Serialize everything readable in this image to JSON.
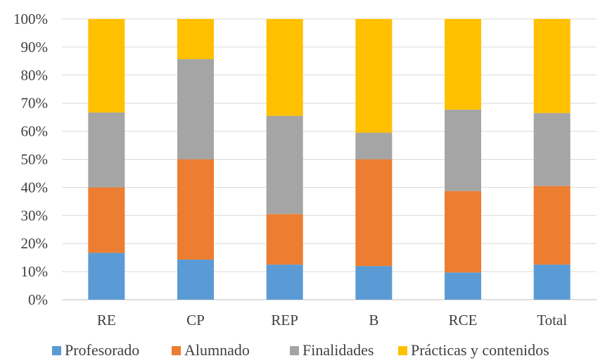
{
  "chart_data": {
    "type": "bar",
    "stacked": true,
    "normalized": true,
    "title": "",
    "xlabel": "",
    "ylabel": "",
    "ylim": [
      0,
      100
    ],
    "grid": true,
    "legend_position": "bottom",
    "y_ticks": [
      "0%",
      "10%",
      "20%",
      "30%",
      "40%",
      "50%",
      "60%",
      "70%",
      "80%",
      "90%",
      "100%"
    ],
    "categories": [
      "RE",
      "CP",
      "REP",
      "B",
      "RCE",
      "Total"
    ],
    "series": [
      {
        "name": "Profesorado",
        "color": "#5B9BD5",
        "values": [
          16.7,
          14.3,
          12.5,
          12.0,
          9.7,
          12.5
        ]
      },
      {
        "name": "Alumnado",
        "color": "#ED7D31",
        "values": [
          23.3,
          35.7,
          18.0,
          38.0,
          29.0,
          28.0
        ]
      },
      {
        "name": "Finalidades",
        "color": "#A5A5A5",
        "values": [
          26.7,
          35.7,
          35.0,
          9.5,
          29.0,
          26.0
        ]
      },
      {
        "name": "Prácticas y contenidos",
        "color": "#FFC000",
        "values": [
          33.3,
          14.3,
          34.5,
          40.5,
          32.3,
          33.5
        ]
      }
    ]
  }
}
